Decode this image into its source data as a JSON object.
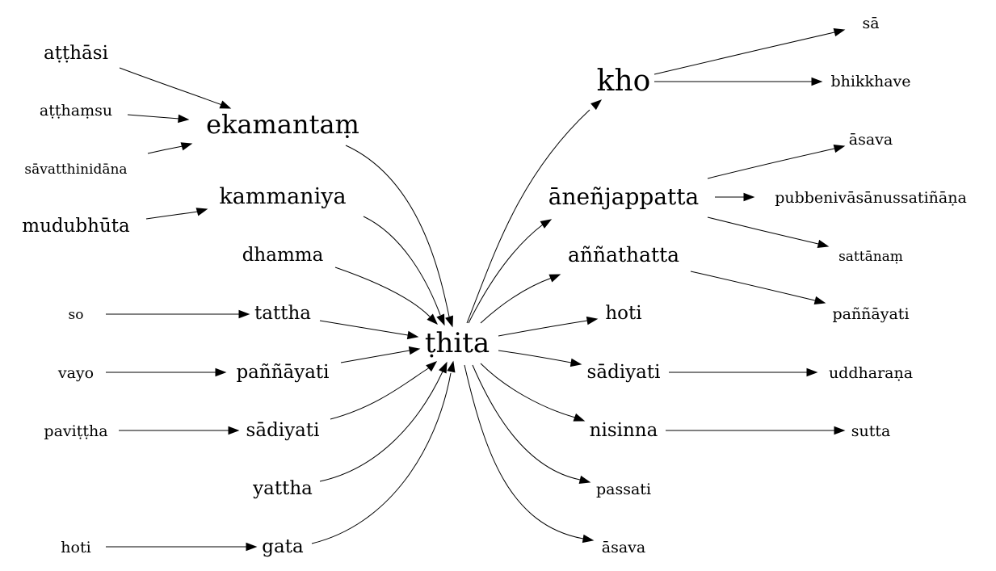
{
  "graph": {
    "nodes": [
      {
        "id": "atthasi",
        "label": "aṭṭhāsi"
      },
      {
        "id": "atthamsu",
        "label": "aṭṭhaṃsu"
      },
      {
        "id": "savatthinidana",
        "label": "sāvatthinidāna"
      },
      {
        "id": "ekamantam",
        "label": "ekamantaṃ"
      },
      {
        "id": "mudubhuta",
        "label": "mudubhūta"
      },
      {
        "id": "kammaniya",
        "label": "kammaniya"
      },
      {
        "id": "dhamma",
        "label": "dhamma"
      },
      {
        "id": "so",
        "label": "so"
      },
      {
        "id": "tattha",
        "label": "tattha"
      },
      {
        "id": "vayo",
        "label": "vayo"
      },
      {
        "id": "pannayati-left",
        "label": "paññāyati"
      },
      {
        "id": "pavittha",
        "label": "paviṭṭha"
      },
      {
        "id": "sadiyati-left",
        "label": "sādiyati"
      },
      {
        "id": "yattha",
        "label": "yattha"
      },
      {
        "id": "hoti-left",
        "label": "hoti"
      },
      {
        "id": "gata",
        "label": "gata"
      },
      {
        "id": "thita",
        "label": "ṭhita"
      },
      {
        "id": "kho",
        "label": "kho"
      },
      {
        "id": "sa",
        "label": "sā"
      },
      {
        "id": "bhikkhave",
        "label": "bhikkhave"
      },
      {
        "id": "anenjappatta",
        "label": "āneñjappatta"
      },
      {
        "id": "asava-top",
        "label": "āsava"
      },
      {
        "id": "pubbenivasanussatinana",
        "label": "pubbenivāsānussatiñāṇa"
      },
      {
        "id": "sattanam",
        "label": "sattānaṃ"
      },
      {
        "id": "annathatta",
        "label": "aññathatta"
      },
      {
        "id": "pannayati-right",
        "label": "paññāyati"
      },
      {
        "id": "hoti-right",
        "label": "hoti"
      },
      {
        "id": "sadiyati-right",
        "label": "sādiyati"
      },
      {
        "id": "uddharana",
        "label": "uddharaṇa"
      },
      {
        "id": "nisinna",
        "label": "nisinna"
      },
      {
        "id": "sutta",
        "label": "sutta"
      },
      {
        "id": "passati",
        "label": "passati"
      },
      {
        "id": "asava-bottom",
        "label": "āsava"
      }
    ],
    "edges": [
      {
        "from": "atthasi",
        "to": "ekamantam"
      },
      {
        "from": "atthamsu",
        "to": "ekamantam"
      },
      {
        "from": "savatthinidana",
        "to": "ekamantam"
      },
      {
        "from": "mudubhuta",
        "to": "kammaniya"
      },
      {
        "from": "so",
        "to": "tattha"
      },
      {
        "from": "vayo",
        "to": "pannayati-left"
      },
      {
        "from": "pavittha",
        "to": "sadiyati-left"
      },
      {
        "from": "hoti-left",
        "to": "gata"
      },
      {
        "from": "ekamantam",
        "to": "thita"
      },
      {
        "from": "kammaniya",
        "to": "thita"
      },
      {
        "from": "dhamma",
        "to": "thita"
      },
      {
        "from": "tattha",
        "to": "thita"
      },
      {
        "from": "pannayati-left",
        "to": "thita"
      },
      {
        "from": "sadiyati-left",
        "to": "thita"
      },
      {
        "from": "yattha",
        "to": "thita"
      },
      {
        "from": "gata",
        "to": "thita"
      },
      {
        "from": "thita",
        "to": "kho"
      },
      {
        "from": "thita",
        "to": "anenjappatta"
      },
      {
        "from": "thita",
        "to": "annathatta"
      },
      {
        "from": "thita",
        "to": "hoti-right"
      },
      {
        "from": "thita",
        "to": "sadiyati-right"
      },
      {
        "from": "thita",
        "to": "nisinna"
      },
      {
        "from": "thita",
        "to": "passati"
      },
      {
        "from": "thita",
        "to": "asava-bottom"
      },
      {
        "from": "kho",
        "to": "sa"
      },
      {
        "from": "kho",
        "to": "bhikkhave"
      },
      {
        "from": "anenjappatta",
        "to": "asava-top"
      },
      {
        "from": "anenjappatta",
        "to": "pubbenivasanussatinana"
      },
      {
        "from": "anenjappatta",
        "to": "sattanam"
      },
      {
        "from": "annathatta",
        "to": "pannayati-right"
      },
      {
        "from": "sadiyati-right",
        "to": "uddharana"
      },
      {
        "from": "nisinna",
        "to": "sutta"
      }
    ]
  }
}
